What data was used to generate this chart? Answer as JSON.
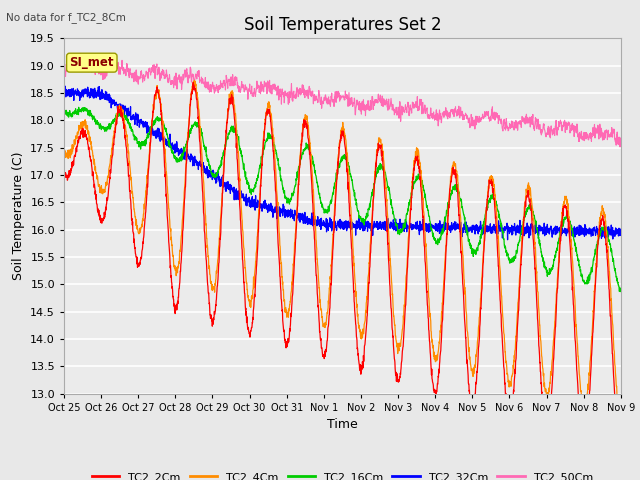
{
  "title": "Soil Temperatures Set 2",
  "no_data_label": "No data for f_TC2_8Cm",
  "annotation_label": "SI_met",
  "xlabel": "Time",
  "ylabel": "Soil Temperature (C)",
  "ylim": [
    13.0,
    19.5
  ],
  "tick_labels": [
    "Oct 25",
    "Oct 26",
    "Oct 27",
    "Oct 28",
    "Oct 29",
    "Oct 30",
    "Oct 31",
    "Nov 1",
    "Nov 2",
    "Nov 3",
    "Nov 4",
    "Nov 5",
    "Nov 6",
    "Nov 7",
    "Nov 8",
    "Nov 9"
  ],
  "legend_entries": [
    "TC2_2Cm",
    "TC2_4Cm",
    "TC2_16Cm",
    "TC2_32Cm",
    "TC2_50Cm"
  ],
  "colors": {
    "TC2_2Cm": "#FF0000",
    "TC2_4Cm": "#FF8C00",
    "TC2_16Cm": "#00CC00",
    "TC2_32Cm": "#0000FF",
    "TC2_50Cm": "#FF69B4"
  },
  "bg_color": "#E8E8E8",
  "plot_bg": "#EBEBEB",
  "grid_color": "#FFFFFF",
  "title_fontsize": 12,
  "label_fontsize": 9,
  "tick_fontsize": 8
}
